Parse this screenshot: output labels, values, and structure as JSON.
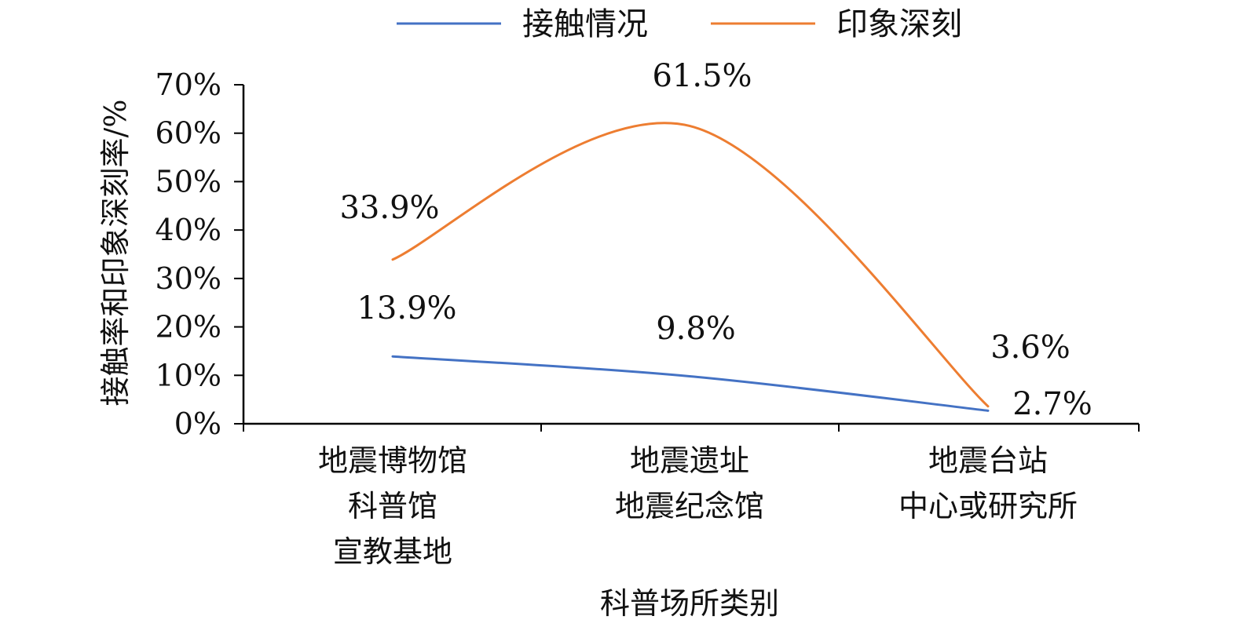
{
  "chart_data": {
    "type": "line",
    "smooth": true,
    "categories": [
      [
        "地震博物馆",
        "科普馆",
        "宣教基地"
      ],
      [
        "地震遗址",
        "地震纪念馆"
      ],
      [
        "地震台站",
        "中心或研究所"
      ]
    ],
    "series": [
      {
        "name": "接触情况",
        "values": [
          13.9,
          9.8,
          2.7
        ],
        "labels": [
          "13.9%",
          "9.8%",
          "2.7%"
        ],
        "color": "#4472C4"
      },
      {
        "name": "印象深刻",
        "values": [
          33.9,
          61.5,
          3.6
        ],
        "labels": [
          "33.9%",
          "61.5%",
          "3.6%"
        ],
        "color": "#ED7D31"
      }
    ],
    "title": "",
    "xlabel": "科普场所类别",
    "ylabel": "接触率和印象深刻率/%",
    "ylim": [
      0,
      70
    ],
    "yticks": [
      0,
      10,
      20,
      30,
      40,
      50,
      60,
      70
    ],
    "ytick_labels": [
      "0%",
      "10%",
      "20%",
      "30%",
      "40%",
      "50%",
      "60%",
      "70%"
    ],
    "grid": false,
    "legend_position": "top"
  }
}
